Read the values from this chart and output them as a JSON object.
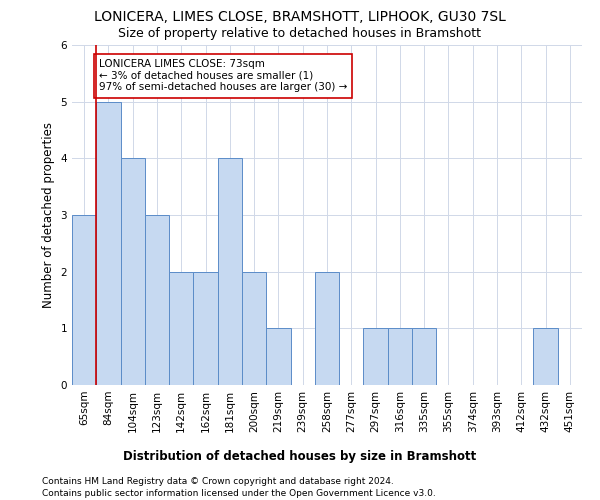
{
  "title": "LONICERA, LIMES CLOSE, BRAMSHOTT, LIPHOOK, GU30 7SL",
  "subtitle": "Size of property relative to detached houses in Bramshott",
  "xlabel": "Distribution of detached houses by size in Bramshott",
  "ylabel": "Number of detached properties",
  "categories": [
    "65sqm",
    "84sqm",
    "104sqm",
    "123sqm",
    "142sqm",
    "162sqm",
    "181sqm",
    "200sqm",
    "219sqm",
    "239sqm",
    "258sqm",
    "277sqm",
    "297sqm",
    "316sqm",
    "335sqm",
    "355sqm",
    "374sqm",
    "393sqm",
    "412sqm",
    "432sqm",
    "451sqm"
  ],
  "values": [
    3,
    5,
    4,
    3,
    2,
    2,
    4,
    2,
    1,
    0,
    2,
    0,
    1,
    1,
    1,
    0,
    0,
    0,
    0,
    1,
    0
  ],
  "bar_color": "#c6d9f1",
  "bar_edge_color": "#5b8cc8",
  "highlight_line_color": "#cc0000",
  "annotation_text": "LONICERA LIMES CLOSE: 73sqm\n← 3% of detached houses are smaller (1)\n97% of semi-detached houses are larger (30) →",
  "annotation_box_color": "#ffffff",
  "annotation_box_edge": "#cc0000",
  "ylim": [
    0,
    6
  ],
  "yticks": [
    0,
    1,
    2,
    3,
    4,
    5,
    6
  ],
  "footer1": "Contains HM Land Registry data © Crown copyright and database right 2024.",
  "footer2": "Contains public sector information licensed under the Open Government Licence v3.0.",
  "title_fontsize": 10,
  "subtitle_fontsize": 9,
  "axis_label_fontsize": 8.5,
  "tick_fontsize": 7.5,
  "annotation_fontsize": 7.5,
  "footer_fontsize": 6.5,
  "background_color": "#ffffff",
  "grid_color": "#d0d8e8"
}
